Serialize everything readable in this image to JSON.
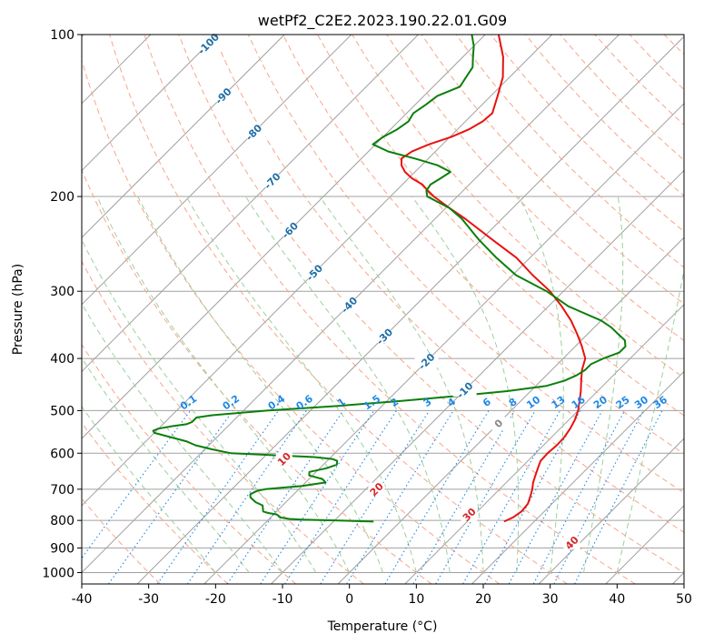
{
  "chart_data": {
    "type": "line",
    "chart_kind": "skew-T log-p diagram",
    "title": "wetPf2_C2E2.2023.190.22.01.G09",
    "xlabel": "Temperature (°C)",
    "ylabel": "Pressure (hPa)",
    "xlim": [
      -40,
      50
    ],
    "ylim": [
      1050,
      100
    ],
    "y_scale": "log",
    "x_ticks": [
      -40,
      -30,
      -20,
      -10,
      0,
      10,
      20,
      30,
      40,
      50
    ],
    "y_ticks": [
      1000,
      900,
      800,
      700,
      600,
      500,
      400,
      300,
      200,
      100
    ],
    "grid": true,
    "colors": {
      "temperature": "#e8120f",
      "dewpoint": "#0a7f0a",
      "isotherm_grid": "#a0a0a0",
      "dry_adiabat": "#f7a58a",
      "moist_adiabat": "#9ccf9c",
      "mixing_ratio": "#1e88e5",
      "isotherm_label": "#1f6fa8",
      "dry_adiabat_label": "#d62728"
    },
    "isotherm_labels": [
      "-100",
      "-90",
      "-80",
      "-70",
      "-60",
      "-50",
      "-40",
      "-30",
      "-20",
      "-10",
      "0"
    ],
    "mixing_ratio_labels": [
      "0.1",
      "0.2",
      "0.4",
      "0.6",
      "1",
      "1.5",
      "2",
      "3",
      "4",
      "6",
      "8",
      "10",
      "13",
      "16",
      "20",
      "25",
      "30",
      "36"
    ],
    "dry_adiabat_labels": [
      "10",
      "20",
      "30",
      "40"
    ],
    "series": [
      {
        "key": "temperature",
        "pressure": [
          804,
          790,
          770,
          745,
          720,
          700,
          680,
          660,
          640,
          620,
          600,
          580,
          560,
          540,
          520,
          500,
          480,
          460,
          440,
          420,
          400,
          380,
          360,
          340,
          320,
          300,
          280,
          260,
          240,
          220,
          210,
          200,
          195,
          190,
          185,
          180,
          175,
          170,
          165,
          160,
          155,
          150,
          145,
          140,
          130,
          120,
          110,
          100
        ],
        "temp": [
          15.5,
          16.2,
          16.6,
          16.4,
          15.6,
          14.9,
          14.0,
          13.3,
          12.6,
          11.9,
          11.8,
          12.0,
          11.9,
          11.5,
          10.9,
          10.0,
          8.8,
          7.5,
          6.0,
          4.5,
          3.3,
          1.0,
          -1.6,
          -4.5,
          -8.0,
          -12.0,
          -17.0,
          -22.0,
          -28.5,
          -35.5,
          -39.5,
          -43.5,
          -45.3,
          -47.0,
          -49.5,
          -51.5,
          -53.0,
          -54.0,
          -53.5,
          -52.0,
          -49.8,
          -48.3,
          -47.4,
          -47.2,
          -49.0,
          -51.0,
          -54.0,
          -58.0
        ]
      },
      {
        "key": "dewpoint",
        "pressure": [
          804,
          800,
          797,
          795,
          790,
          785,
          780,
          775,
          770,
          760,
          750,
          740,
          725,
          715,
          705,
          700,
          690,
          680,
          670,
          660,
          650,
          640,
          630,
          620,
          615,
          610,
          600,
          590,
          580,
          570,
          560,
          550,
          545,
          540,
          535,
          530,
          525,
          520,
          515,
          510,
          500,
          490,
          480,
          470,
          460,
          450,
          440,
          430,
          420,
          410,
          400,
          390,
          380,
          370,
          360,
          350,
          340,
          320,
          300,
          280,
          260,
          240,
          220,
          210,
          200,
          195,
          190,
          185,
          180,
          175,
          170,
          165,
          160,
          155,
          150,
          145,
          140,
          135,
          130,
          125,
          120,
          115,
          110,
          105,
          100
        ],
        "temp": [
          -4.0,
          -10.0,
          -15.0,
          -17.0,
          -18.5,
          -19.0,
          -19.5,
          -21.0,
          -22.0,
          -22.5,
          -23.0,
          -24.5,
          -26.0,
          -26.5,
          -26.0,
          -25.0,
          -20.0,
          -17.0,
          -18.0,
          -20.5,
          -21.0,
          -19.0,
          -18.0,
          -18.5,
          -19.5,
          -22.5,
          -35.5,
          -39.0,
          -42.0,
          -44.0,
          -47.0,
          -50.0,
          -50.5,
          -50.0,
          -48.5,
          -46.5,
          -46.0,
          -46.0,
          -46.0,
          -44.0,
          -36.5,
          -26.5,
          -18.0,
          -10.5,
          -3.5,
          1.5,
          3.5,
          4.5,
          5.0,
          5.0,
          6.0,
          7.5,
          7.5,
          6.5,
          4.5,
          2.5,
          0.0,
          -7.0,
          -12.5,
          -19.5,
          -25.0,
          -30.5,
          -36.0,
          -39.5,
          -44.5,
          -45.5,
          -45.8,
          -45.2,
          -44.7,
          -47.6,
          -52.0,
          -57.0,
          -60.4,
          -60.0,
          -59.0,
          -58.5,
          -59.0,
          -58.4,
          -58.0,
          -56.0,
          -56.5,
          -57.0,
          -58.5,
          -60.0,
          -62.0
        ]
      }
    ]
  }
}
